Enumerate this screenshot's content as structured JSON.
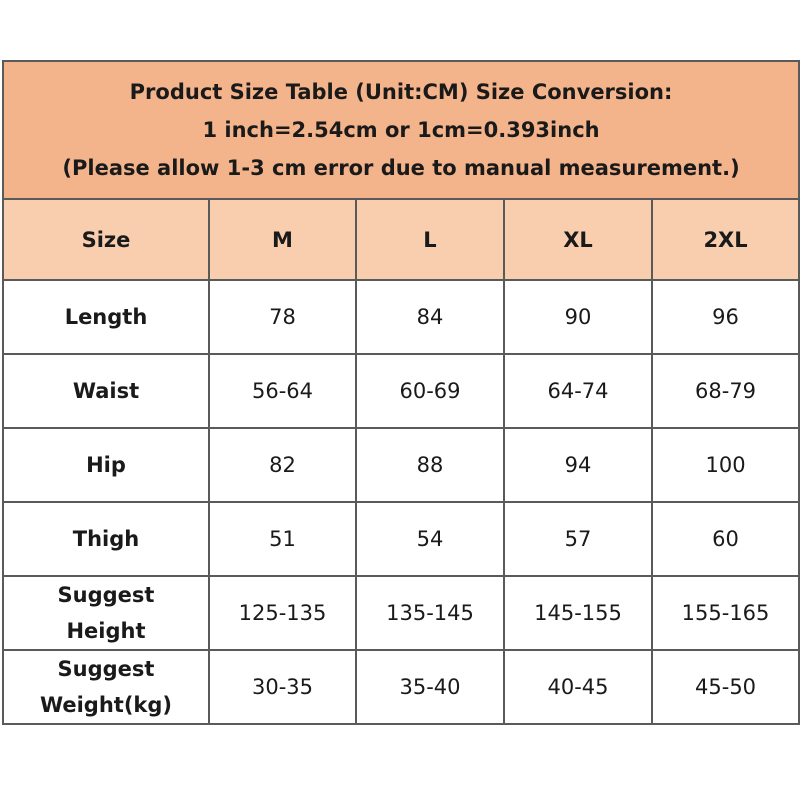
{
  "header": {
    "title_lines": [
      "Product Size Table (Unit:CM) Size Conversion:",
      "1 inch=2.54cm or 1cm=0.393inch",
      "(Please allow 1-3 cm error due to manual measurement.)"
    ]
  },
  "table": {
    "columns": [
      "Size",
      "M",
      "L",
      "XL",
      "2XL"
    ],
    "rows": [
      [
        "Length",
        "78",
        "84",
        "90",
        "96"
      ],
      [
        "Waist",
        "56-64",
        "60-69",
        "64-74",
        "68-79"
      ],
      [
        "Hip",
        "82",
        "88",
        "94",
        "100"
      ],
      [
        "Thigh",
        "51",
        "54",
        "57",
        "60"
      ],
      [
        "Suggest Height",
        "125-135",
        "135-145",
        "145-155",
        "155-165"
      ],
      [
        "Suggest Weight(kg)",
        "30-35",
        "35-40",
        "40-45",
        "45-50"
      ]
    ]
  }
}
